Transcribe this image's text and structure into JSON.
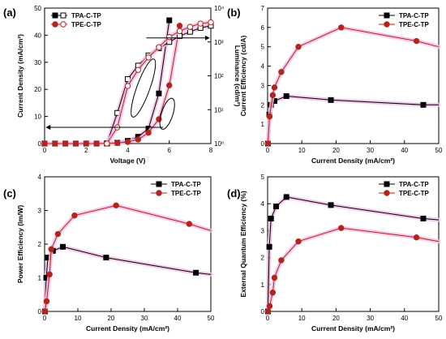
{
  "series_names": [
    "TPA-C-TP",
    "TPE-C-TP"
  ],
  "colors": {
    "tpa": "#000000",
    "tpe": "#b5231c",
    "glow": "#f3bfe6"
  },
  "chart_data": [
    {
      "panel": "(a)",
      "type": "line",
      "xlabel": "Voltage (V)",
      "ylabel": "Current Density (mA/cm²)",
      "y2label": "Luminance (cd/m²)",
      "xlim": [
        0,
        8
      ],
      "ylim": [
        0,
        50
      ],
      "y2lim": [
        1,
        10000
      ],
      "y2scale": "log",
      "xticks": [
        "0",
        "2",
        "4",
        "6",
        "8"
      ],
      "yticks": [
        "0",
        "10",
        "20",
        "30",
        "40",
        "50"
      ],
      "y2ticks": [
        "10⁰",
        "10¹",
        "10²",
        "10³",
        "10⁴"
      ],
      "legend_position": "top-left",
      "current_density": [
        {
          "name": "TPA-C-TP",
          "x": [
            0.0,
            0.5,
            1.0,
            1.5,
            2.0,
            2.5,
            3.0,
            3.5,
            4.0,
            4.5,
            5.0,
            5.5,
            6.0
          ],
          "values": [
            0,
            0,
            0,
            0,
            0,
            0,
            0.1,
            0.3,
            1.0,
            2.5,
            5.5,
            18.5,
            45.5
          ]
        },
        {
          "name": "TPE-C-TP",
          "x": [
            0.0,
            0.5,
            1.0,
            1.5,
            2.0,
            2.5,
            3.0,
            3.5,
            4.0,
            4.5,
            5.0,
            5.5,
            6.0,
            6.5
          ],
          "values": [
            0,
            0,
            0,
            0,
            0,
            0,
            0.1,
            0.2,
            0.6,
            1.5,
            4.0,
            9.0,
            21.5,
            43.5
          ]
        }
      ],
      "luminance": [
        {
          "name": "TPA-C-TP",
          "x": [
            3.0,
            3.5,
            4.0,
            4.5,
            5.0,
            5.5,
            6.0,
            6.5,
            7.0,
            7.5,
            8.0
          ],
          "values": [
            1,
            8,
            80,
            200,
            400,
            650,
            1000,
            1500,
            2000,
            2600,
            3000
          ]
        },
        {
          "name": "TPE-C-TP",
          "x": [
            3.0,
            3.5,
            4.0,
            4.5,
            5.0,
            5.5,
            6.0,
            6.5,
            7.0,
            7.5,
            8.0
          ],
          "values": [
            1,
            3,
            50,
            150,
            350,
            700,
            1400,
            2100,
            2800,
            3500,
            3800
          ]
        }
      ]
    },
    {
      "panel": "(b)",
      "type": "line",
      "xlabel": "Current Density (mA/cm²)",
      "ylabel": "Current Efficiency (cd/A)",
      "xlim": [
        0,
        50
      ],
      "ylim": [
        0,
        7
      ],
      "xticks": [
        "0",
        "10",
        "20",
        "30",
        "40",
        "50"
      ],
      "yticks": [
        "0",
        "1",
        "2",
        "3",
        "4",
        "5",
        "6",
        "7"
      ],
      "legend_position": "top-right",
      "series": [
        {
          "name": "TPA-C-TP",
          "x": [
            0.1,
            0.5,
            1.0,
            2.0,
            5.5,
            18.5,
            45.5,
            50
          ],
          "values": [
            0,
            1.5,
            2.0,
            2.2,
            2.45,
            2.25,
            2.0,
            2.0
          ]
        },
        {
          "name": "TPE-C-TP",
          "x": [
            0.1,
            0.6,
            1.5,
            2.0,
            4.0,
            9.0,
            21.5,
            43.5,
            50
          ],
          "values": [
            0,
            1.4,
            2.5,
            2.9,
            3.7,
            5.0,
            6.0,
            5.3,
            5.0
          ]
        }
      ]
    },
    {
      "panel": "(c)",
      "type": "line",
      "xlabel": "Current Density (mA/cm²)",
      "ylabel": "Power Efficiency (lm/W)",
      "xlim": [
        0,
        50
      ],
      "ylim": [
        0,
        4
      ],
      "xticks": [
        "0",
        "10",
        "20",
        "30",
        "40",
        "50"
      ],
      "yticks": [
        "0",
        "1",
        "2",
        "3",
        "4"
      ],
      "legend_position": "top-right",
      "series": [
        {
          "name": "TPA-C-TP",
          "x": [
            0.1,
            0.5,
            1.0,
            2.5,
            5.5,
            18.5,
            45.5,
            50
          ],
          "values": [
            0,
            1.0,
            1.6,
            1.8,
            1.92,
            1.6,
            1.15,
            1.1
          ]
        },
        {
          "name": "TPE-C-TP",
          "x": [
            0.1,
            0.6,
            1.5,
            2.0,
            4.0,
            9.0,
            21.5,
            43.5,
            50
          ],
          "values": [
            0,
            0.3,
            1.1,
            1.85,
            2.3,
            2.85,
            3.15,
            2.6,
            2.4
          ]
        }
      ]
    },
    {
      "panel": "(d)",
      "type": "line",
      "xlabel": "Current Density (mA/cm²)",
      "ylabel": "External Quantum Efficiency (%)",
      "xlim": [
        0,
        50
      ],
      "ylim": [
        0,
        5
      ],
      "xticks": [
        "0",
        "10",
        "20",
        "30",
        "40",
        "50"
      ],
      "yticks": [
        "0",
        "1",
        "2",
        "3",
        "4",
        "5"
      ],
      "legend_position": "top-right",
      "series": [
        {
          "name": "TPA-C-TP",
          "x": [
            0.1,
            0.5,
            1.0,
            2.5,
            5.5,
            18.5,
            45.5,
            50
          ],
          "values": [
            0,
            2.4,
            3.45,
            3.9,
            4.25,
            3.95,
            3.45,
            3.4
          ]
        },
        {
          "name": "TPE-C-TP",
          "x": [
            0.1,
            0.6,
            1.5,
            2.0,
            4.0,
            9.0,
            21.5,
            43.5,
            50
          ],
          "values": [
            0,
            0.2,
            0.7,
            1.25,
            1.9,
            2.6,
            3.1,
            2.75,
            2.6
          ]
        }
      ]
    }
  ]
}
